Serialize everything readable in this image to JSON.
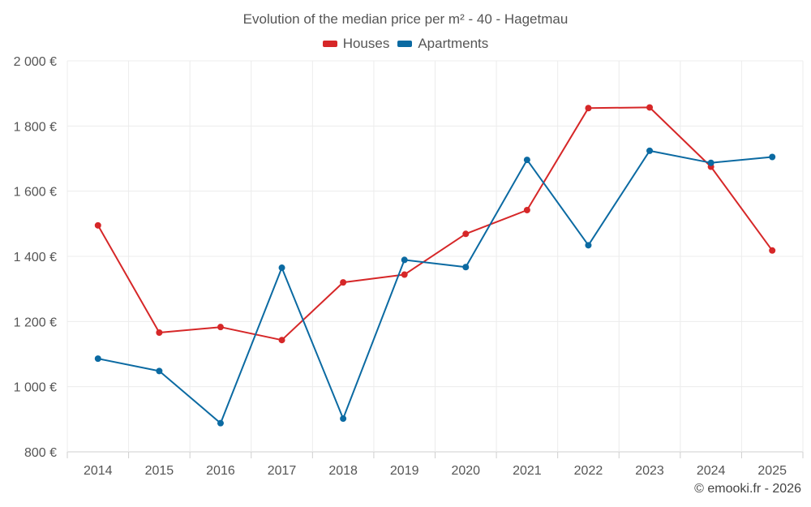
{
  "chart_data": {
    "type": "line",
    "title": "Evolution of the median price per m² - 40 - Hagetmau",
    "categories": [
      "2014",
      "2015",
      "2016",
      "2017",
      "2018",
      "2019",
      "2020",
      "2021",
      "2022",
      "2023",
      "2024",
      "2025"
    ],
    "y_tick_values": [
      800,
      1000,
      1200,
      1400,
      1600,
      1800,
      2000
    ],
    "y_tick_labels": [
      "800 €",
      "1 000 €",
      "1 200 €",
      "1 400 €",
      "1 600 €",
      "1 800 €",
      "2 000 €"
    ],
    "ylim": [
      800,
      2000
    ],
    "grid": true,
    "legend_position": "top-center",
    "series": [
      {
        "name": "Houses",
        "color": "#d62728",
        "values": [
          1495,
          1166,
          1183,
          1143,
          1320,
          1344,
          1469,
          1542,
          1855,
          1857,
          1675,
          1418
        ]
      },
      {
        "name": "Apartments",
        "color": "#0b6aa2",
        "values": [
          1086,
          1048,
          888,
          1365,
          902,
          1389,
          1367,
          1696,
          1434,
          1724,
          1687,
          1705
        ]
      }
    ]
  },
  "legend": {
    "houses_label": "Houses",
    "apartments_label": "Apartments"
  },
  "credit": "© emooki.fr - 2026"
}
